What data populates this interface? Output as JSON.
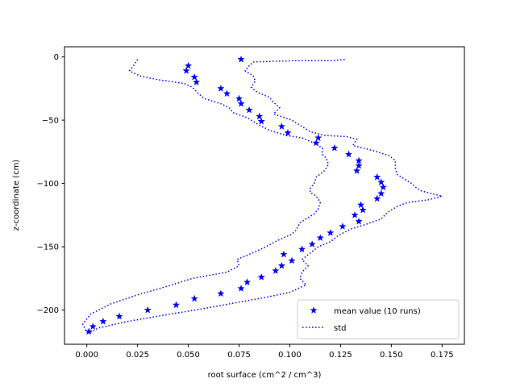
{
  "chart_data": {
    "type": "line",
    "title": "",
    "xlabel": "root surface (cm^2 / cm^3)",
    "ylabel": "z-coordinate (cm)",
    "xlim": [
      -0.011,
      0.186
    ],
    "ylim": [
      -227,
      8
    ],
    "xticks": [
      0.0,
      0.025,
      0.05,
      0.075,
      0.1,
      0.125,
      0.15,
      0.175
    ],
    "xtick_labels": [
      "0.000",
      "0.025",
      "0.050",
      "0.075",
      "0.100",
      "0.125",
      "0.150",
      "0.175"
    ],
    "yticks": [
      0,
      -50,
      -100,
      -150,
      -200
    ],
    "ytick_labels": [
      "0",
      "−50",
      "−100",
      "−150",
      "−200"
    ],
    "grid": false,
    "legend_position": "lower-right",
    "series": [
      {
        "name": "mean value (10 runs)",
        "style": "markers",
        "marker": "star",
        "color": "#0000ff",
        "points": [
          [
            0.076,
            -2
          ],
          [
            0.05,
            -7
          ],
          [
            0.049,
            -11
          ],
          [
            0.053,
            -16
          ],
          [
            0.054,
            -20
          ],
          [
            0.066,
            -25
          ],
          [
            0.069,
            -29
          ],
          [
            0.075,
            -33
          ],
          [
            0.076,
            -37
          ],
          [
            0.08,
            -42
          ],
          [
            0.085,
            -47
          ],
          [
            0.086,
            -51
          ],
          [
            0.096,
            -55
          ],
          [
            0.099,
            -60
          ],
          [
            0.114,
            -64
          ],
          [
            0.113,
            -68
          ],
          [
            0.122,
            -72
          ],
          [
            0.129,
            -77
          ],
          [
            0.134,
            -82
          ],
          [
            0.134,
            -86
          ],
          [
            0.133,
            -90
          ],
          [
            0.143,
            -95
          ],
          [
            0.145,
            -99
          ],
          [
            0.146,
            -103
          ],
          [
            0.145,
            -108
          ],
          [
            0.143,
            -112
          ],
          [
            0.135,
            -117
          ],
          [
            0.136,
            -121
          ],
          [
            0.132,
            -125
          ],
          [
            0.134,
            -130
          ],
          [
            0.126,
            -134
          ],
          [
            0.12,
            -139
          ],
          [
            0.115,
            -143
          ],
          [
            0.111,
            -148
          ],
          [
            0.106,
            -152
          ],
          [
            0.097,
            -156
          ],
          [
            0.101,
            -161
          ],
          [
            0.096,
            -165
          ],
          [
            0.093,
            -169
          ],
          [
            0.086,
            -174
          ],
          [
            0.079,
            -178
          ],
          [
            0.076,
            -183
          ],
          [
            0.066,
            -187
          ],
          [
            0.053,
            -191
          ],
          [
            0.044,
            -196
          ],
          [
            0.03,
            -200
          ],
          [
            0.016,
            -205
          ],
          [
            0.008,
            -209
          ],
          [
            0.003,
            -213
          ],
          [
            0.001,
            -217
          ]
        ]
      },
      {
        "name": "std",
        "style": "dotted",
        "color": "#0000ff",
        "lines": [
          [
            [
              0.025,
              -2
            ],
            [
              0.023,
              -7
            ],
            [
              0.022,
              -9
            ],
            [
              0.021,
              -11
            ],
            [
              0.026,
              -15
            ],
            [
              0.035,
              -18
            ],
            [
              0.048,
              -21
            ],
            [
              0.052,
              -24
            ],
            [
              0.055,
              -29
            ],
            [
              0.058,
              -33
            ],
            [
              0.066,
              -37
            ],
            [
              0.07,
              -40
            ],
            [
              0.072,
              -44
            ],
            [
              0.079,
              -48
            ],
            [
              0.085,
              -54
            ],
            [
              0.09,
              -58
            ],
            [
              0.098,
              -62
            ],
            [
              0.106,
              -64
            ],
            [
              0.112,
              -68
            ],
            [
              0.116,
              -72
            ],
            [
              0.116,
              -77
            ],
            [
              0.118,
              -80
            ],
            [
              0.119,
              -85
            ],
            [
              0.117,
              -90
            ],
            [
              0.113,
              -95
            ],
            [
              0.112,
              -100
            ],
            [
              0.11,
              -104
            ],
            [
              0.11,
              -107
            ],
            [
              0.113,
              -110
            ],
            [
              0.115,
              -115
            ],
            [
              0.114,
              -120
            ],
            [
              0.112,
              -124
            ],
            [
              0.108,
              -128
            ],
            [
              0.105,
              -131
            ],
            [
              0.103,
              -137
            ],
            [
              0.101,
              -140
            ],
            [
              0.094,
              -145
            ],
            [
              0.087,
              -151
            ],
            [
              0.08,
              -156
            ],
            [
              0.074,
              -160
            ],
            [
              0.075,
              -165
            ],
            [
              0.069,
              -170
            ],
            [
              0.052,
              -175
            ],
            [
              0.04,
              -181
            ],
            [
              0.025,
              -188
            ],
            [
              0.012,
              -195
            ],
            [
              0.002,
              -203
            ],
            [
              -0.002,
              -211
            ],
            [
              0.0,
              -218
            ]
          ],
          [
            [
              0.127,
              -2
            ],
            [
              0.12,
              -3
            ],
            [
              0.102,
              -3
            ],
            [
              0.082,
              -4
            ],
            [
              0.08,
              -7
            ],
            [
              0.078,
              -11
            ],
            [
              0.082,
              -15
            ],
            [
              0.083,
              -19
            ],
            [
              0.081,
              -24
            ],
            [
              0.084,
              -28
            ],
            [
              0.09,
              -32
            ],
            [
              0.092,
              -36
            ],
            [
              0.095,
              -40
            ],
            [
              0.092,
              -45
            ],
            [
              0.101,
              -50
            ],
            [
              0.106,
              -55
            ],
            [
              0.11,
              -59
            ],
            [
              0.117,
              -62
            ],
            [
              0.128,
              -63
            ],
            [
              0.133,
              -65
            ],
            [
              0.131,
              -70
            ],
            [
              0.141,
              -74
            ],
            [
              0.149,
              -78
            ],
            [
              0.152,
              -82
            ],
            [
              0.152,
              -88
            ],
            [
              0.153,
              -93
            ],
            [
              0.157,
              -97
            ],
            [
              0.16,
              -100
            ],
            [
              0.162,
              -103
            ],
            [
              0.165,
              -106
            ],
            [
              0.175,
              -110
            ],
            [
              0.168,
              -113
            ],
            [
              0.158,
              -115
            ],
            [
              0.153,
              -118
            ],
            [
              0.148,
              -123
            ],
            [
              0.145,
              -128
            ],
            [
              0.138,
              -132
            ],
            [
              0.13,
              -136
            ],
            [
              0.124,
              -141
            ],
            [
              0.12,
              -146
            ],
            [
              0.114,
              -150
            ],
            [
              0.11,
              -155
            ],
            [
              0.106,
              -160
            ],
            [
              0.109,
              -165
            ],
            [
              0.106,
              -170
            ],
            [
              0.105,
              -175
            ],
            [
              0.108,
              -180
            ],
            [
              0.1,
              -186
            ],
            [
              0.088,
              -190
            ],
            [
              0.074,
              -194
            ],
            [
              0.057,
              -199
            ],
            [
              0.038,
              -204
            ],
            [
              0.02,
              -209
            ],
            [
              0.006,
              -214
            ],
            [
              0.001,
              -218
            ]
          ]
        ]
      }
    ]
  }
}
